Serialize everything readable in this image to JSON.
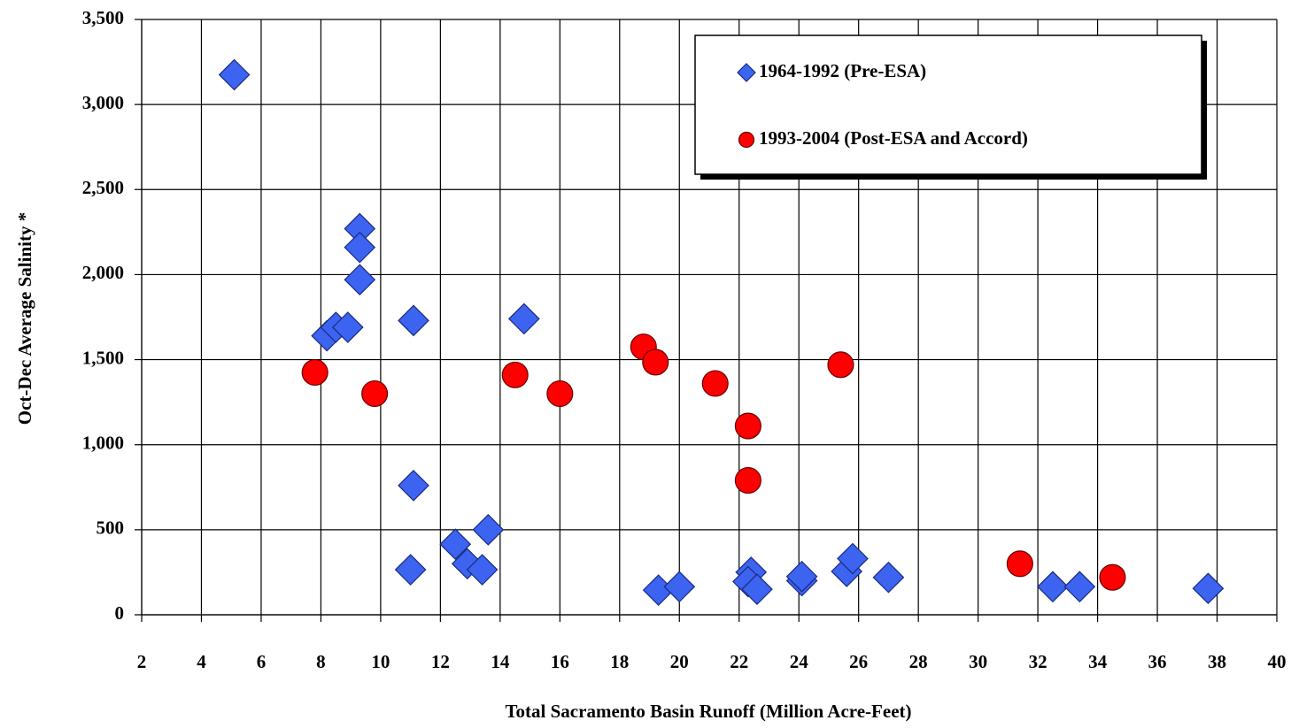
{
  "chart_data": {
    "type": "scatter",
    "xlabel": "Total Sacramento Basin Runoff (Million Acre-Feet)",
    "ylabel": "Oct-Dec Average Salinity *",
    "xlim": [
      2,
      40
    ],
    "xticks": [
      2,
      4,
      6,
      8,
      10,
      12,
      14,
      16,
      18,
      20,
      22,
      24,
      26,
      28,
      30,
      32,
      34,
      36,
      38,
      40
    ],
    "ylim": [
      0,
      3500
    ],
    "yticks": [
      0,
      500,
      {
        "value": 1000,
        "label": "1,000"
      },
      {
        "value": 1500,
        "label": "1,500"
      },
      {
        "value": 2000,
        "label": "2,000"
      },
      {
        "value": 2500,
        "label": "2,500"
      },
      {
        "value": 3000,
        "label": "3,000"
      },
      {
        "value": 3500,
        "label": "3,500"
      }
    ],
    "grid": true,
    "legend": "upper right",
    "series": [
      {
        "name": "1964-1992 (Pre-ESA)",
        "color": "#3c64f0",
        "marker": "diamond",
        "x": [
          5.1,
          9.3,
          9.3,
          9.3,
          8.2,
          8.5,
          8.9,
          11.1,
          14.8,
          11.1,
          11.0,
          12.5,
          12.9,
          13.6,
          13.4,
          19.3,
          20.0,
          22.4,
          22.3,
          22.6,
          24.1,
          24.1,
          25.6,
          25.8,
          27.0,
          32.5,
          33.4,
          37.7
        ],
        "values": [
          3175,
          2270,
          2160,
          1970,
          1640,
          1690,
          1690,
          1730,
          1740,
          760,
          265,
          415,
          300,
          500,
          265,
          145,
          165,
          250,
          195,
          150,
          200,
          225,
          255,
          330,
          220,
          165,
          165,
          155
        ]
      },
      {
        "name": "1993-2004 (Post-ESA and Accord)",
        "color": "#ff0000",
        "marker": "circle",
        "x": [
          7.8,
          9.8,
          14.5,
          16.0,
          18.8,
          19.2,
          21.2,
          22.3,
          22.3,
          25.4,
          31.4,
          34.5
        ],
        "values": [
          1425,
          1300,
          1410,
          1300,
          1575,
          1485,
          1360,
          1110,
          790,
          1470,
          300,
          220
        ]
      }
    ]
  }
}
